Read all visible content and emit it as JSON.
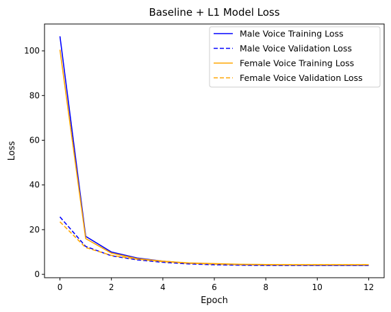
{
  "chart_data": {
    "type": "line",
    "title": "Baseline + L1 Model Loss",
    "xlabel": "Epoch",
    "ylabel": "Loss",
    "xlim": [
      -0.6,
      12.6
    ],
    "ylim": [
      -1.5,
      112
    ],
    "x_ticks": [
      0,
      2,
      4,
      6,
      8,
      10,
      12
    ],
    "y_ticks": [
      0,
      20,
      40,
      60,
      80,
      100
    ],
    "grid": false,
    "legend": "top-right",
    "x": [
      0,
      1,
      2,
      3,
      4,
      5,
      6,
      7,
      8,
      9,
      10,
      11,
      12
    ],
    "series": [
      {
        "name": "Male Voice Training Loss",
        "color": "#0000ff",
        "style": "solid",
        "values": [
          106.5,
          17.0,
          10.0,
          7.3,
          5.9,
          5.0,
          4.6,
          4.3,
          4.2,
          4.2,
          4.1,
          4.1,
          4.1
        ]
      },
      {
        "name": "Male Voice Validation Loss",
        "color": "#0000ff",
        "style": "dashed",
        "values": [
          25.7,
          12.5,
          8.3,
          6.5,
          5.4,
          4.7,
          4.3,
          4.1,
          4.0,
          4.0,
          4.0,
          4.0,
          4.0
        ]
      },
      {
        "name": "Female Voice Training Loss",
        "color": "#ffa500",
        "style": "solid",
        "values": [
          100.5,
          16.0,
          9.5,
          7.0,
          5.9,
          5.1,
          4.8,
          4.5,
          4.4,
          4.3,
          4.3,
          4.3,
          4.3
        ]
      },
      {
        "name": "Female Voice Validation Loss",
        "color": "#ffa500",
        "style": "dashed",
        "values": [
          23.5,
          12.0,
          8.5,
          6.8,
          5.7,
          5.0,
          4.6,
          4.4,
          4.3,
          4.3,
          4.3,
          4.3,
          4.3
        ]
      }
    ]
  }
}
